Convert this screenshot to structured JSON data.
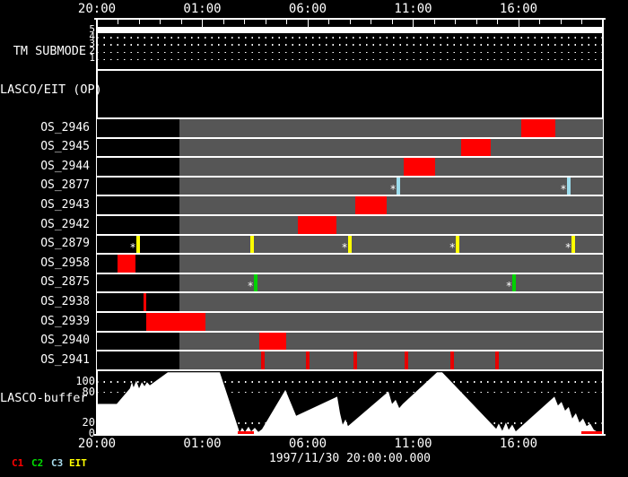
{
  "window": {
    "description": "LASCO/EIT observation scheduling timeline display"
  },
  "colors": {
    "background": "#000000",
    "band_gray": "#565656",
    "band_black": "#000000",
    "bar_red": "#ff0000",
    "frame_white": "#ffffff",
    "c1": "#e60000",
    "c2": "#00d200",
    "c3": "#9bdcec",
    "eit": "#ffff00",
    "legend_c1": "#ff0000",
    "legend_c2": "#00e000",
    "legend_c3": "#a8dcec",
    "legend_eit": "#ffff00",
    "buffer_fill": "#ffffff",
    "buffer_empty_red": "#ff0000"
  },
  "footer": {
    "datestamp": "1997/11/30 20:00:00.000"
  },
  "chart_data": {
    "type": "timeline",
    "title": "",
    "axis": {
      "hours_total": 24,
      "minor_tick_every_h": 1,
      "major_tick_every_h": 5,
      "labels": [
        "20:00",
        "01:00",
        "06:00",
        "11:00",
        "16:00"
      ],
      "label_hours": [
        0,
        5,
        10,
        15,
        20
      ],
      "gray_region_start_hour": 3.91,
      "gray_region_end_hour": 24
    },
    "panels": {
      "tm_submode": {
        "label": "TM SUBMODE",
        "levels": [
          "5",
          "4",
          "3",
          "2",
          "1"
        ],
        "active_level": "5",
        "active_level_span_hours": [
          0,
          24
        ]
      },
      "lasco_eit": {
        "label": "LASCO/EIT (OP)"
      },
      "buffer": {
        "label": "LASCO-buffer",
        "yticks": [
          "100",
          "80",
          "20",
          "0"
        ],
        "ytick_values": [
          100,
          80,
          20,
          0
        ],
        "ylim": [
          0,
          119
        ],
        "profile_t_value": [
          [
            0,
            58
          ],
          [
            0.94,
            58
          ],
          [
            1.57,
            88
          ],
          [
            1.66,
            100
          ],
          [
            1.74,
            90
          ],
          [
            1.87,
            103
          ],
          [
            2.0,
            88
          ],
          [
            2.13,
            100
          ],
          [
            2.26,
            92
          ],
          [
            2.38,
            100
          ],
          [
            2.51,
            94
          ],
          [
            3.36,
            119
          ],
          [
            5.83,
            119
          ],
          [
            6.77,
            3
          ],
          [
            6.89,
            12
          ],
          [
            7.02,
            4
          ],
          [
            7.19,
            14
          ],
          [
            7.32,
            5
          ],
          [
            7.49,
            12
          ],
          [
            7.66,
            4
          ],
          [
            7.83,
            9
          ],
          [
            8.94,
            85
          ],
          [
            9.45,
            35
          ],
          [
            11.4,
            72
          ],
          [
            11.53,
            40
          ],
          [
            11.66,
            18
          ],
          [
            11.79,
            28
          ],
          [
            11.91,
            15
          ],
          [
            13.83,
            82
          ],
          [
            14.0,
            58
          ],
          [
            14.17,
            66
          ],
          [
            14.34,
            50
          ],
          [
            14.51,
            58
          ],
          [
            16.13,
            119
          ],
          [
            16.38,
            119
          ],
          [
            18.94,
            10
          ],
          [
            19.06,
            20
          ],
          [
            19.23,
            6
          ],
          [
            19.4,
            22
          ],
          [
            19.53,
            8
          ],
          [
            19.7,
            18
          ],
          [
            19.87,
            5
          ],
          [
            21.7,
            72
          ],
          [
            21.87,
            55
          ],
          [
            22.04,
            62
          ],
          [
            22.21,
            45
          ],
          [
            22.38,
            52
          ],
          [
            22.55,
            30
          ],
          [
            22.72,
            40
          ],
          [
            22.89,
            22
          ],
          [
            23.06,
            30
          ],
          [
            23.23,
            15
          ],
          [
            23.4,
            20
          ],
          [
            23.57,
            8
          ],
          [
            23.79,
            3
          ],
          [
            23.96,
            0
          ]
        ],
        "empty_segments_hours": [
          [
            6.68,
            7.45
          ],
          [
            22.98,
            23.96
          ]
        ]
      }
    },
    "rows": [
      {
        "label": "OS_2946",
        "bars": [
          [
            20.13,
            21.74
          ]
        ],
        "ticks": []
      },
      {
        "label": "OS_2945",
        "bars": [
          [
            17.28,
            18.68
          ]
        ],
        "ticks": []
      },
      {
        "label": "OS_2944",
        "bars": [
          [
            14.55,
            16.04
          ]
        ],
        "ticks": []
      },
      {
        "label": "OS_2877",
        "bars": [],
        "ticks": [
          {
            "t": 14.3,
            "color": "c3",
            "star": true
          },
          {
            "t": 22.38,
            "color": "c3",
            "star": true
          }
        ]
      },
      {
        "label": "OS_2943",
        "bars": [
          [
            12.26,
            13.74
          ]
        ],
        "ticks": []
      },
      {
        "label": "OS_2942",
        "bars": [
          [
            9.53,
            11.36
          ]
        ],
        "ticks": []
      },
      {
        "label": "OS_2879",
        "bars": [],
        "ticks": [
          {
            "t": 1.96,
            "color": "eit",
            "star": true
          },
          {
            "t": 7.36,
            "color": "eit",
            "star": false
          },
          {
            "t": 12.0,
            "color": "eit",
            "star": true
          },
          {
            "t": 17.11,
            "color": "eit",
            "star": true
          },
          {
            "t": 22.6,
            "color": "eit",
            "star": true
          }
        ]
      },
      {
        "label": "OS_2958",
        "bars": [
          [
            0.98,
            1.83
          ]
        ],
        "ticks": []
      },
      {
        "label": "OS_2875",
        "bars": [],
        "ticks": [
          {
            "t": 7.53,
            "color": "c2",
            "star": true
          },
          {
            "t": 19.79,
            "color": "c2",
            "star": true
          }
        ]
      },
      {
        "label": "OS_2938",
        "bars": [
          [
            2.21,
            2.36
          ]
        ],
        "ticks": []
      },
      {
        "label": "OS_2939",
        "bars": [
          [
            2.34,
            5.15
          ]
        ],
        "ticks": []
      },
      {
        "label": "OS_2940",
        "bars": [
          [
            7.7,
            8.98
          ]
        ],
        "ticks": []
      },
      {
        "label": "OS_2941",
        "bars": [],
        "ticks": [
          {
            "t": 7.87,
            "color": "c1",
            "star": false
          },
          {
            "t": 10.0,
            "color": "c1",
            "star": false
          },
          {
            "t": 12.26,
            "color": "c1",
            "star": false
          },
          {
            "t": 14.68,
            "color": "c1",
            "star": false
          },
          {
            "t": 16.85,
            "color": "c1",
            "star": false
          },
          {
            "t": 18.98,
            "color": "c1",
            "star": false
          }
        ]
      }
    ],
    "legend": [
      {
        "label": "C1",
        "color_key": "legend_c1"
      },
      {
        "label": "C2",
        "color_key": "legend_c2"
      },
      {
        "label": "C3",
        "color_key": "legend_c3"
      },
      {
        "label": "EIT",
        "color_key": "legend_eit"
      }
    ],
    "datestamp": "1997/11/30 20:00:00.000"
  }
}
